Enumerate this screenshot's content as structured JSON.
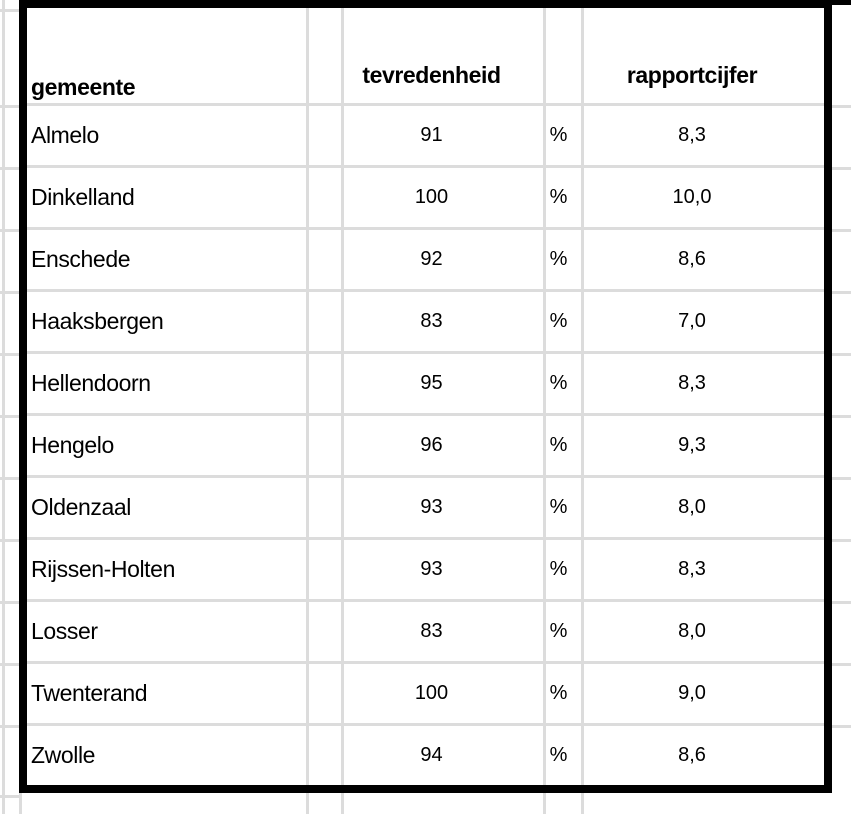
{
  "table": {
    "columns": [
      {
        "key": "gemeente",
        "label": "gemeente"
      },
      {
        "key": "tevredenheid",
        "label": "tevredenheid"
      },
      {
        "key": "rapportcijfer",
        "label": "rapportcijfer"
      }
    ],
    "rows": [
      {
        "gemeente": "Almelo",
        "tevredenheid": "91",
        "unit": "%",
        "rapportcijfer": "8,3"
      },
      {
        "gemeente": "Dinkelland",
        "tevredenheid": "100",
        "unit": "%",
        "rapportcijfer": "10,0"
      },
      {
        "gemeente": "Enschede",
        "tevredenheid": "92",
        "unit": "%",
        "rapportcijfer": "8,6"
      },
      {
        "gemeente": "Haaksbergen",
        "tevredenheid": "83",
        "unit": "%",
        "rapportcijfer": "7,0"
      },
      {
        "gemeente": "Hellendoorn",
        "tevredenheid": "95",
        "unit": "%",
        "rapportcijfer": "8,3"
      },
      {
        "gemeente": "Hengelo",
        "tevredenheid": "96",
        "unit": "%",
        "rapportcijfer": "9,3"
      },
      {
        "gemeente": "Oldenzaal",
        "tevredenheid": "93",
        "unit": "%",
        "rapportcijfer": "8,0"
      },
      {
        "gemeente": "Rijssen-Holten",
        "tevredenheid": "93",
        "unit": "%",
        "rapportcijfer": "8,3"
      },
      {
        "gemeente": "Losser",
        "tevredenheid": "83",
        "unit": "%",
        "rapportcijfer": "8,0"
      },
      {
        "gemeente": "Twenterand",
        "tevredenheid": "100",
        "unit": "%",
        "rapportcijfer": "9,0"
      },
      {
        "gemeente": "Zwolle",
        "tevredenheid": "94",
        "unit": "%",
        "rapportcijfer": "8,6"
      }
    ]
  },
  "colors": {
    "gridline": "#dcdcdc",
    "table_border": "#000000",
    "text": "#000000",
    "background": "#ffffff"
  }
}
